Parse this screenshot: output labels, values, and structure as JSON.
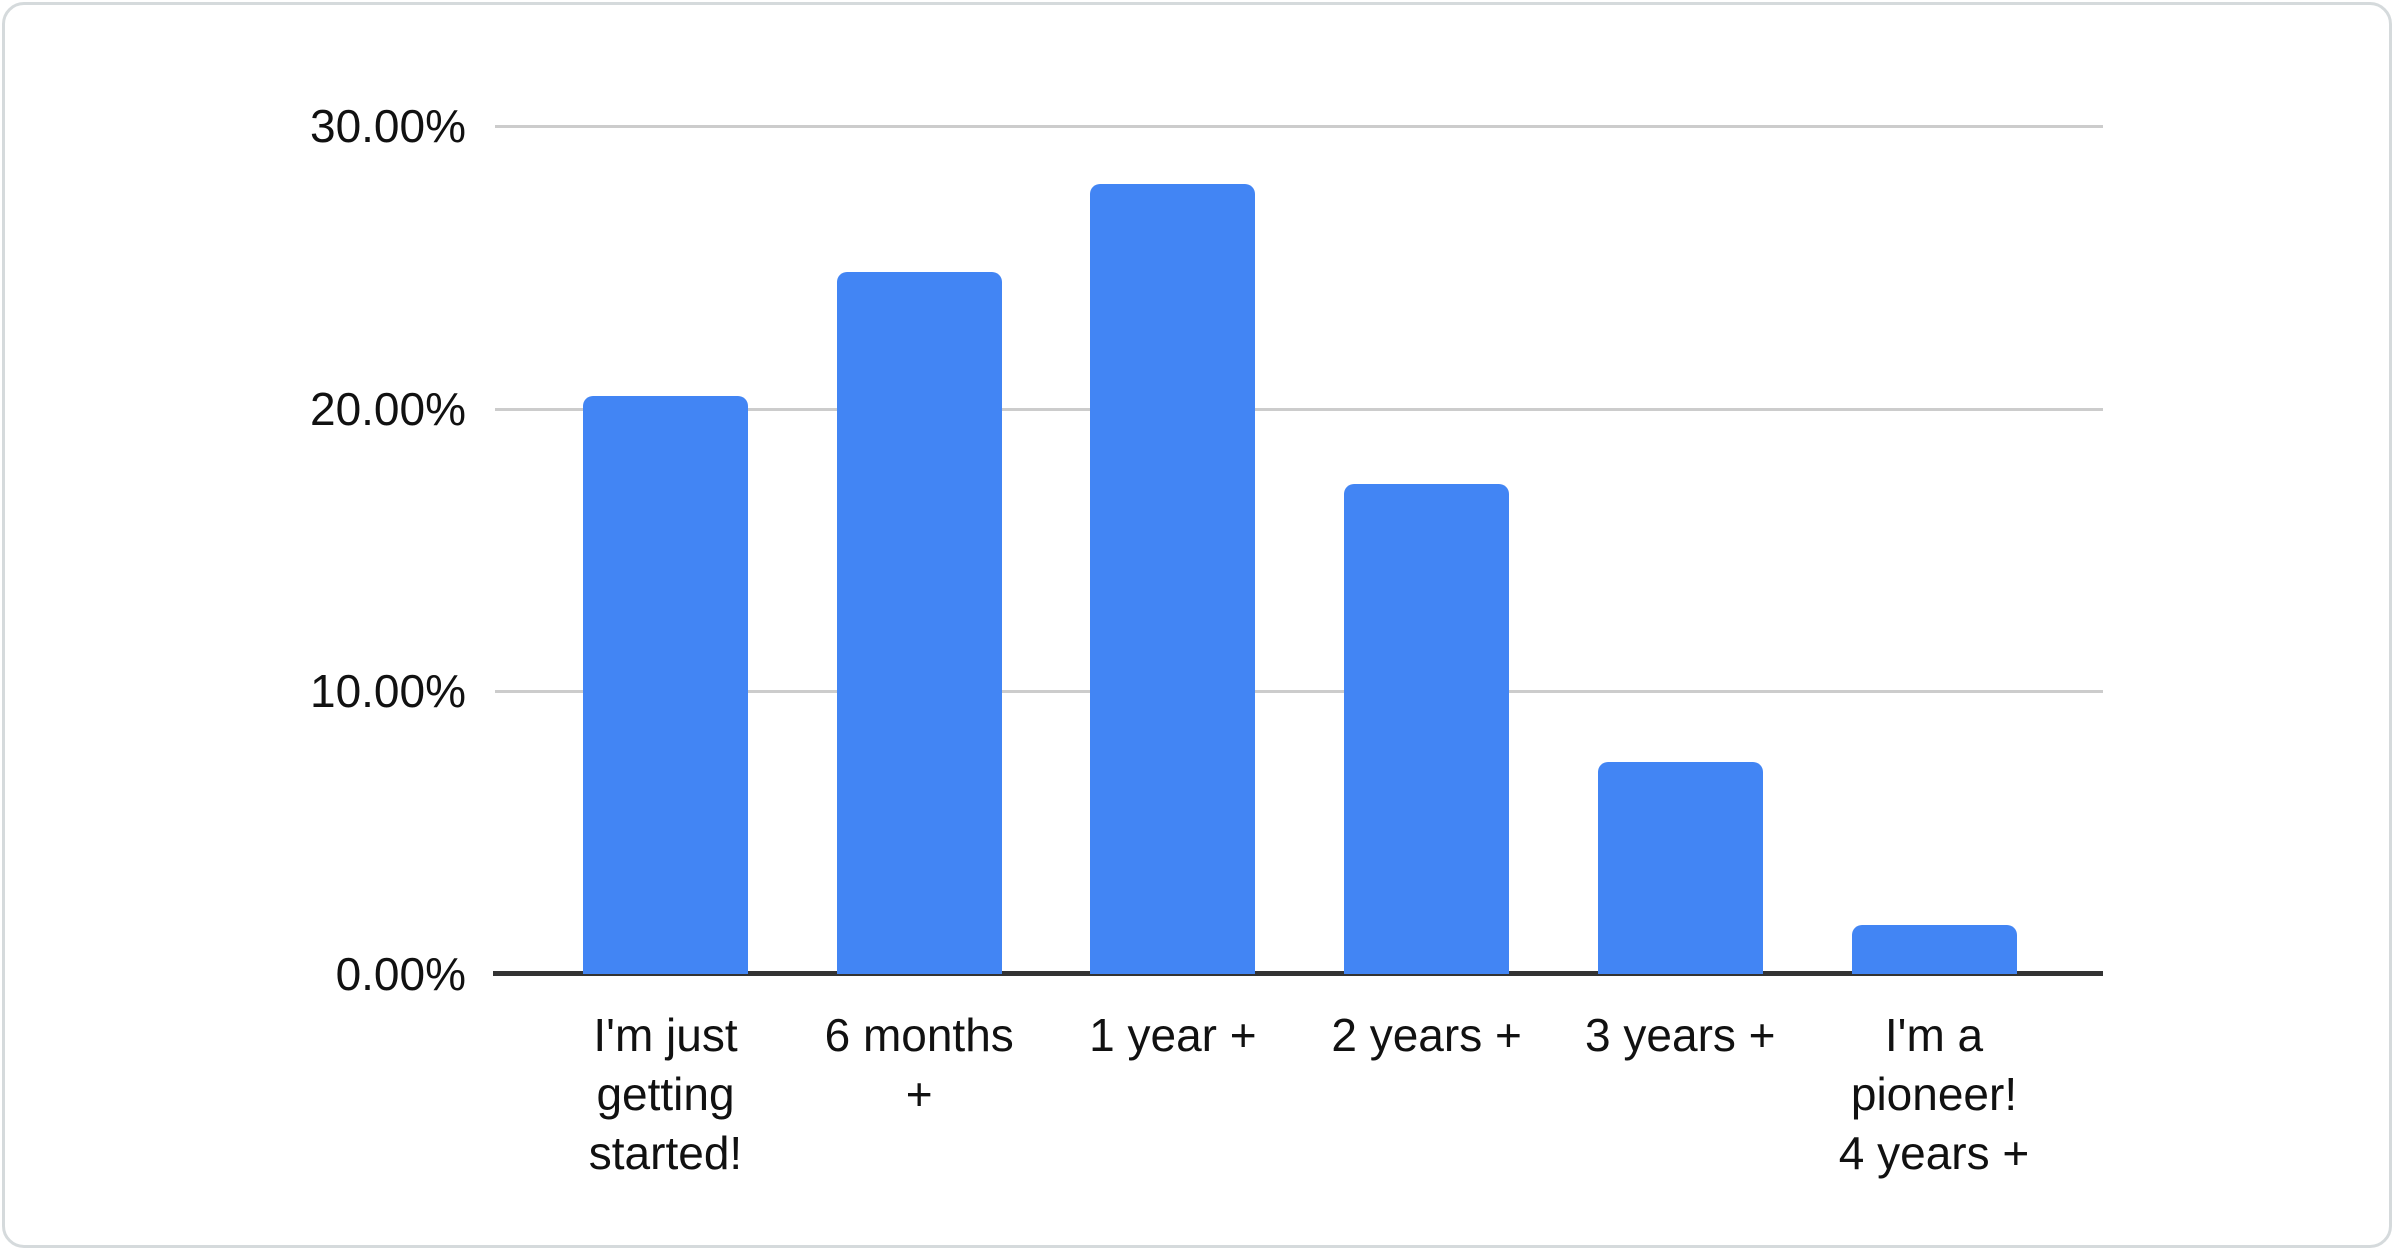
{
  "chart_data": {
    "type": "bar",
    "title": "",
    "xlabel": "",
    "ylabel": "",
    "categories": [
      "I'm just getting started!",
      "6 months +",
      "1 year +",
      "2 years +",
      "3 years +",
      "I'm a pioneer! 4 years +"
    ],
    "category_lines": [
      [
        "I'm just",
        "getting",
        "started!"
      ],
      [
        "6 months",
        "+"
      ],
      [
        "1 year +"
      ],
      [
        "2 years +"
      ],
      [
        "3 years +"
      ],
      [
        "I'm a",
        "pioneer!",
        "4 years +"
      ]
    ],
    "values": [
      20.44,
      24.83,
      27.95,
      17.32,
      7.51,
      1.74
    ],
    "ylim": [
      0,
      30
    ],
    "y_ticks": [
      {
        "label": "30.00%",
        "value": 30
      },
      {
        "label": "20.00%",
        "value": 20
      },
      {
        "label": "10.00%",
        "value": 10
      },
      {
        "label": "0.00%",
        "value": 0
      }
    ],
    "grid": true,
    "legend_position": "none",
    "bar_color": "#4285f4",
    "gridline_color": "#cccccc",
    "axis_line_color": "#333333",
    "label_color": "#111111"
  }
}
